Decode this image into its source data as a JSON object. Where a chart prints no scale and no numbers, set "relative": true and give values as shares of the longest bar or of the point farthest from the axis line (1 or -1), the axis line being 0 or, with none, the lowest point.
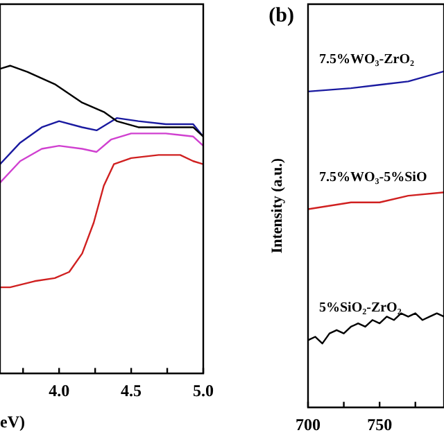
{
  "chart_data": [
    {
      "type": "line",
      "relative": true,
      "xlabel": "eV)",
      "xlim": [
        3.59,
        5.0
      ],
      "xticks": [
        {
          "value": 3.75,
          "label": null
        },
        {
          "value": 4,
          "label": "4.0"
        },
        {
          "value": 4.25,
          "label": null
        },
        4.5,
        {
          "value": 4.75,
          "label": null
        },
        {
          "value": 5,
          "label": "5.0"
        }
      ],
      "tick_labels": "x",
      "grid": false,
      "series": [
        {
          "color": "#000000",
          "x": [
            3.59,
            3.66,
            3.78,
            3.97,
            4.16,
            4.31,
            4.4,
            4.55,
            4.74,
            4.93,
            5.0
          ],
          "values": [
            0.99,
            1.0,
            0.98,
            0.94,
            0.88,
            0.85,
            0.82,
            0.8,
            0.8,
            0.8,
            0.77
          ]
        },
        {
          "color": "#1a1aa0",
          "x": [
            3.59,
            3.73,
            3.88,
            4.0,
            4.16,
            4.26,
            4.4,
            4.55,
            4.74,
            4.93,
            5.0
          ],
          "values": [
            0.68,
            0.75,
            0.8,
            0.82,
            0.8,
            0.79,
            0.83,
            0.82,
            0.81,
            0.81,
            0.77
          ]
        },
        {
          "color": "#d040d0",
          "x": [
            3.59,
            3.73,
            3.88,
            4.0,
            4.16,
            4.26,
            4.36,
            4.5,
            4.74,
            4.93,
            5.0
          ],
          "values": [
            0.62,
            0.69,
            0.73,
            0.74,
            0.73,
            0.72,
            0.76,
            0.78,
            0.78,
            0.77,
            0.74
          ]
        },
        {
          "color": "#d02020",
          "x": [
            3.59,
            3.66,
            3.83,
            3.97,
            4.07,
            4.16,
            4.24,
            4.31,
            4.38,
            4.5,
            4.69,
            4.84,
            4.93,
            5.0
          ],
          "values": [
            0.28,
            0.28,
            0.3,
            0.31,
            0.33,
            0.39,
            0.49,
            0.61,
            0.68,
            0.7,
            0.71,
            0.71,
            0.69,
            0.68
          ]
        }
      ]
    },
    {
      "type": "line",
      "relative": true,
      "title": "(b)",
      "ylabel": "Intensity (a.u.)",
      "xlim": [
        700,
        795
      ],
      "xticks": [
        700,
        {
          "value": 725,
          "label": null
        },
        750,
        {
          "value": 775,
          "label": null
        }
      ],
      "tick_labels": "x",
      "grid": false,
      "series": [
        {
          "name": "7.5%WO₃-ZrO₂",
          "color": "#1a1aa0",
          "x": [
            700,
            730,
            750,
            770,
            795
          ],
          "values": [
            0.94,
            0.95,
            0.96,
            0.97,
            1.0
          ]
        },
        {
          "name": "7.5%WO₃-5%SiO",
          "color": "#d02020",
          "x": [
            700,
            730,
            750,
            770,
            795
          ],
          "values": [
            0.59,
            0.61,
            0.61,
            0.63,
            0.64
          ]
        },
        {
          "name": "5%SiO₂-ZrO₂",
          "color": "#000000",
          "x": [
            700,
            705,
            710,
            715,
            720,
            725,
            730,
            735,
            740,
            745,
            750,
            755,
            760,
            765,
            770,
            775,
            780,
            785,
            790,
            795
          ],
          "values": [
            0.2,
            0.21,
            0.19,
            0.22,
            0.23,
            0.22,
            0.24,
            0.25,
            0.24,
            0.26,
            0.25,
            0.27,
            0.26,
            0.28,
            0.27,
            0.28,
            0.26,
            0.27,
            0.28,
            0.27
          ]
        }
      ]
    }
  ]
}
